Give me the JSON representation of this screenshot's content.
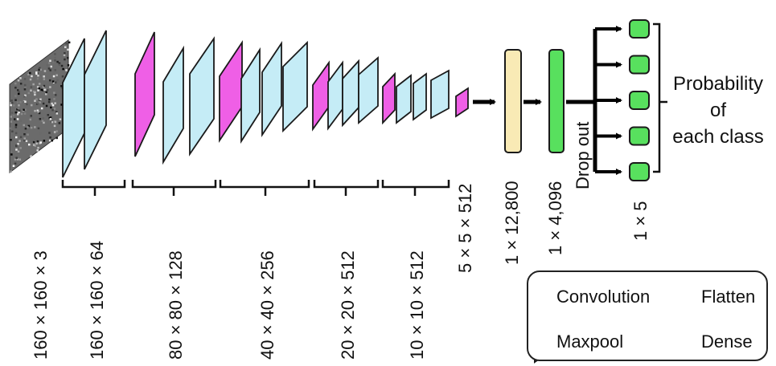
{
  "colors": {
    "convolution": "#c5ecf6",
    "maxpool": "#ef5fe6",
    "flatten": "#f9eab5",
    "dense": "#58e05e",
    "outline": "#1a1a1a"
  },
  "layers": [
    {
      "type": "convolution",
      "count": 2
    },
    {
      "type": "maxpool",
      "count": 1
    },
    {
      "type": "convolution",
      "count": 2
    },
    {
      "type": "maxpool",
      "count": 1
    },
    {
      "type": "convolution",
      "count": 3
    },
    {
      "type": "maxpool",
      "count": 1
    },
    {
      "type": "convolution",
      "count": 3
    },
    {
      "type": "maxpool",
      "count": 1
    },
    {
      "type": "convolution",
      "count": 3
    },
    {
      "type": "maxpool",
      "count": 1
    }
  ],
  "dimensions": {
    "input": "160 × 160 × 3",
    "block1": "160 × 160 × 64",
    "block2": "80 × 80 × 128",
    "block3": "40 × 40 × 256",
    "block4": "20 × 20 × 512",
    "block5": "10 × 10 × 512",
    "pool_out": "5 × 5 × 512",
    "flatten": "1 × 12,800",
    "dense": "1 × 4,096",
    "output": "1 × 5"
  },
  "dropout_label": "Drop out",
  "output_node_count": 5,
  "probability_label": {
    "line1": "Probability",
    "line2": "of",
    "line3": "each class"
  },
  "legend": {
    "convolution": "Convolution",
    "maxpool": "Maxpool",
    "flatten": "Flatten",
    "dense": "Dense"
  }
}
